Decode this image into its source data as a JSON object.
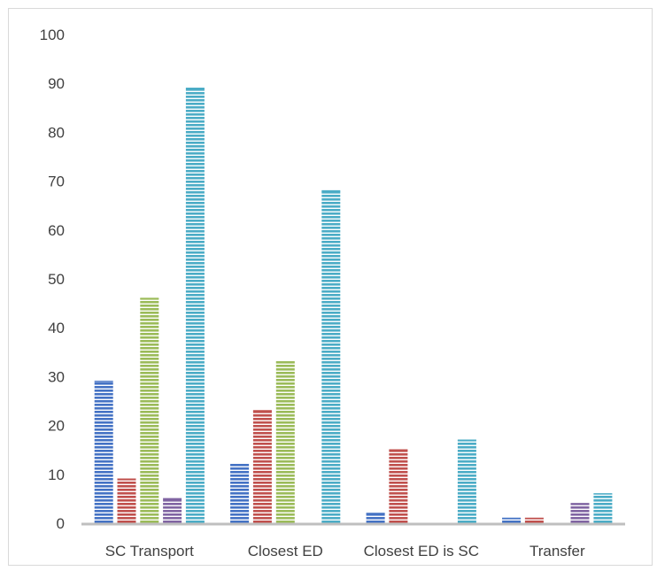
{
  "chart_data": {
    "type": "bar",
    "title": "",
    "xlabel": "",
    "ylabel": "",
    "ylim": [
      0,
      100
    ],
    "yticks": [
      0,
      10,
      20,
      30,
      40,
      50,
      60,
      70,
      80,
      90,
      100
    ],
    "categories": [
      "SC Transport",
      "Closest ED",
      "Closest ED is SC",
      "Transfer"
    ],
    "grid": false,
    "legend": "none",
    "fill_pattern": "horizontal-stripes",
    "series": [
      {
        "color": "#4472c4",
        "values": [
          29,
          12,
          2,
          1
        ]
      },
      {
        "color": "#c0504d",
        "values": [
          9,
          23,
          15,
          1
        ]
      },
      {
        "color": "#9bbb59",
        "values": [
          46,
          33,
          0,
          0
        ]
      },
      {
        "color": "#8064a2",
        "values": [
          5,
          0,
          0,
          4
        ]
      },
      {
        "color": "#4bacc6",
        "values": [
          89,
          68,
          17,
          6
        ]
      }
    ],
    "axis_color": "#bfbfbf"
  }
}
